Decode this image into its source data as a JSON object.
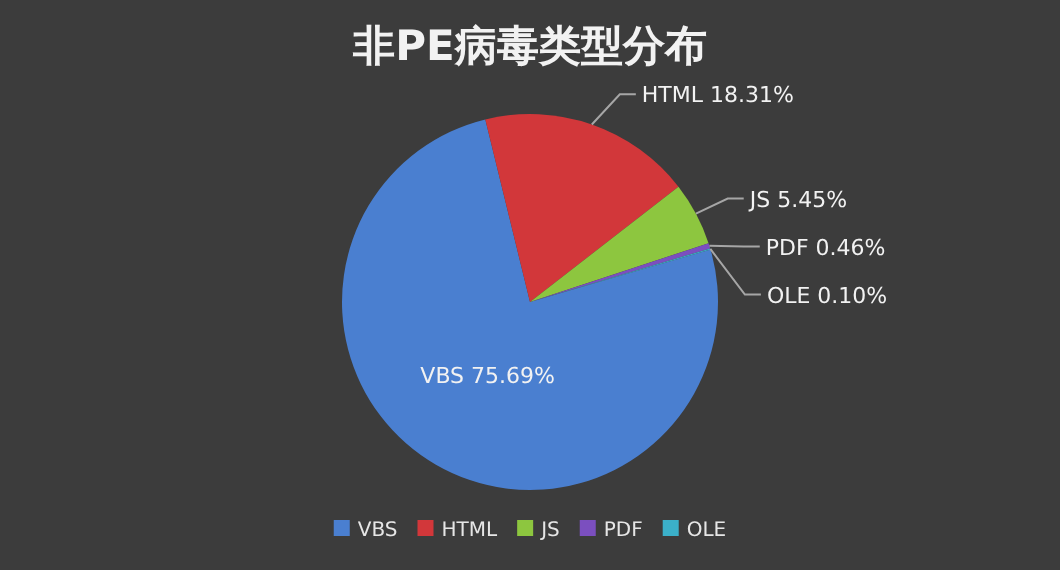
{
  "chart_data": {
    "type": "pie",
    "title": "非PE病毒类型分布",
    "categories": [
      "VBS",
      "HTML",
      "JS",
      "PDF",
      "OLE"
    ],
    "values": [
      75.69,
      18.31,
      5.45,
      0.46,
      0.1
    ],
    "colors": [
      "#4a7fd0",
      "#d2373a",
      "#8dc63f",
      "#7b4fbf",
      "#3bb0c9"
    ],
    "value_labels": [
      "75.69%",
      "18.31%",
      "5.45%",
      "0.46%",
      "0.10%"
    ],
    "legend": "bottom"
  }
}
